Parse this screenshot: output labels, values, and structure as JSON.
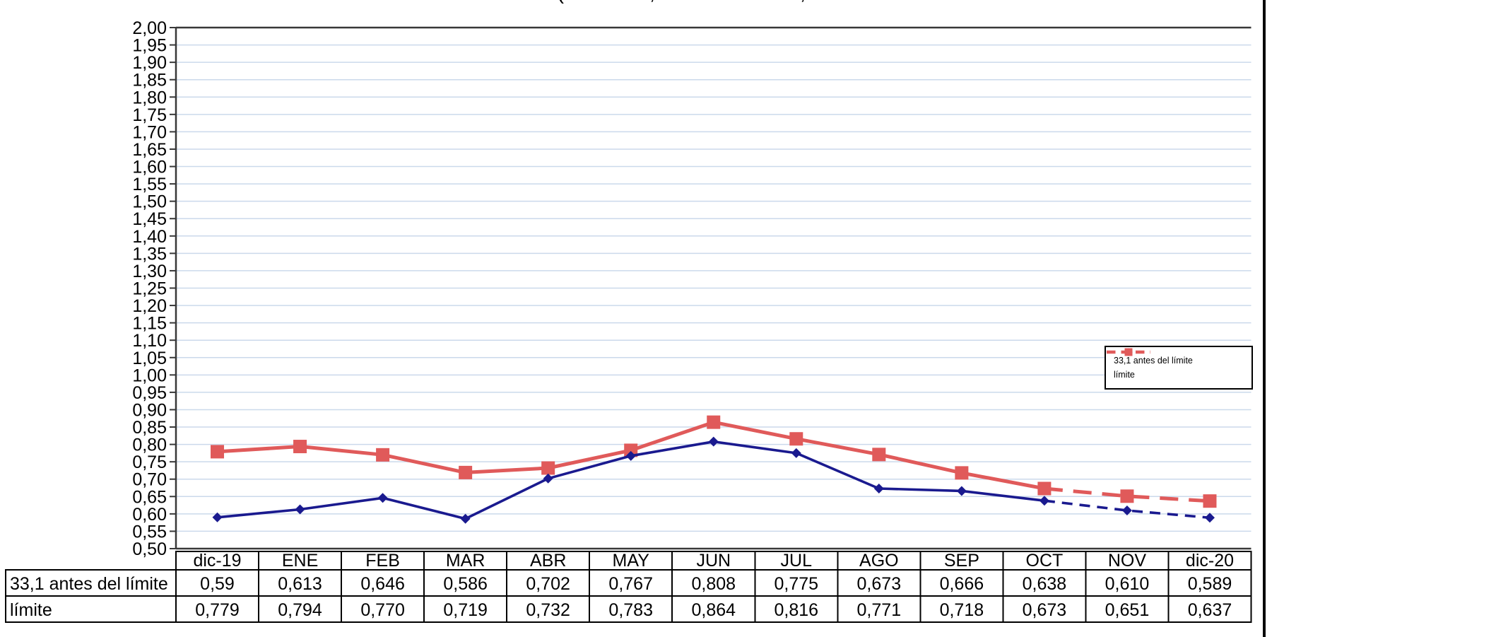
{
  "title_fragments": [
    {
      "glyph": "(",
      "x": 793
    },
    {
      "glyph": ",",
      "x": 923
    },
    {
      "glyph": ",",
      "x": 1136
    }
  ],
  "chart_data": {
    "type": "line",
    "categories": [
      "dic-19",
      "ENE",
      "FEB",
      "MAR",
      "ABR",
      "MAY",
      "JUN",
      "JUL",
      "AGO",
      "SEP",
      "OCT",
      "NOV",
      "dic-20"
    ],
    "series": [
      {
        "name": "33,1 antes del límite",
        "values": [
          0.59,
          0.613,
          0.646,
          0.586,
          0.702,
          0.767,
          0.808,
          0.775,
          0.673,
          0.666,
          0.638,
          0.61,
          0.589
        ],
        "color": "#1A1A8F",
        "marker": "diamond",
        "line_style": "solid, dashed from OCT to dic-20",
        "solid_until_index": 10
      },
      {
        "name": "límite",
        "values": [
          0.779,
          0.794,
          0.77,
          0.719,
          0.732,
          0.783,
          0.864,
          0.816,
          0.771,
          0.718,
          0.673,
          0.651,
          0.637
        ],
        "color": "#E05A5A",
        "marker": "square",
        "line_style": "solid, dashed from OCT to dic-20",
        "solid_until_index": 10
      }
    ],
    "title": "",
    "xlabel": "",
    "ylabel": "",
    "ylim": [
      0.5,
      2.0
    ],
    "ytick_step": 0.05,
    "ytick_decimal_separator": ",",
    "grid": true,
    "gridline_color": "#CBD9EB",
    "axis_color": "#383838",
    "legend_position": "right-middle-inside"
  },
  "table": {
    "columns": [
      "dic-19",
      "ENE",
      "FEB",
      "MAR",
      "ABR",
      "MAY",
      "JUN",
      "JUL",
      "AGO",
      "SEP",
      "OCT",
      "NOV",
      "dic-20"
    ],
    "rows": [
      {
        "label": "33,1 antes del límite",
        "values": [
          "0,59",
          "0,613",
          "0,646",
          "0,586",
          "0,702",
          "0,767",
          "0,808",
          "0,775",
          "0,673",
          "0,666",
          "0,638",
          "0,610",
          "0,589"
        ]
      },
      {
        "label": "límite",
        "values": [
          "0,779",
          "0,794",
          "0,770",
          "0,719",
          "0,732",
          "0,783",
          "0,864",
          "0,816",
          "0,771",
          "0,718",
          "0,673",
          "0,651",
          "0,637"
        ]
      }
    ]
  }
}
